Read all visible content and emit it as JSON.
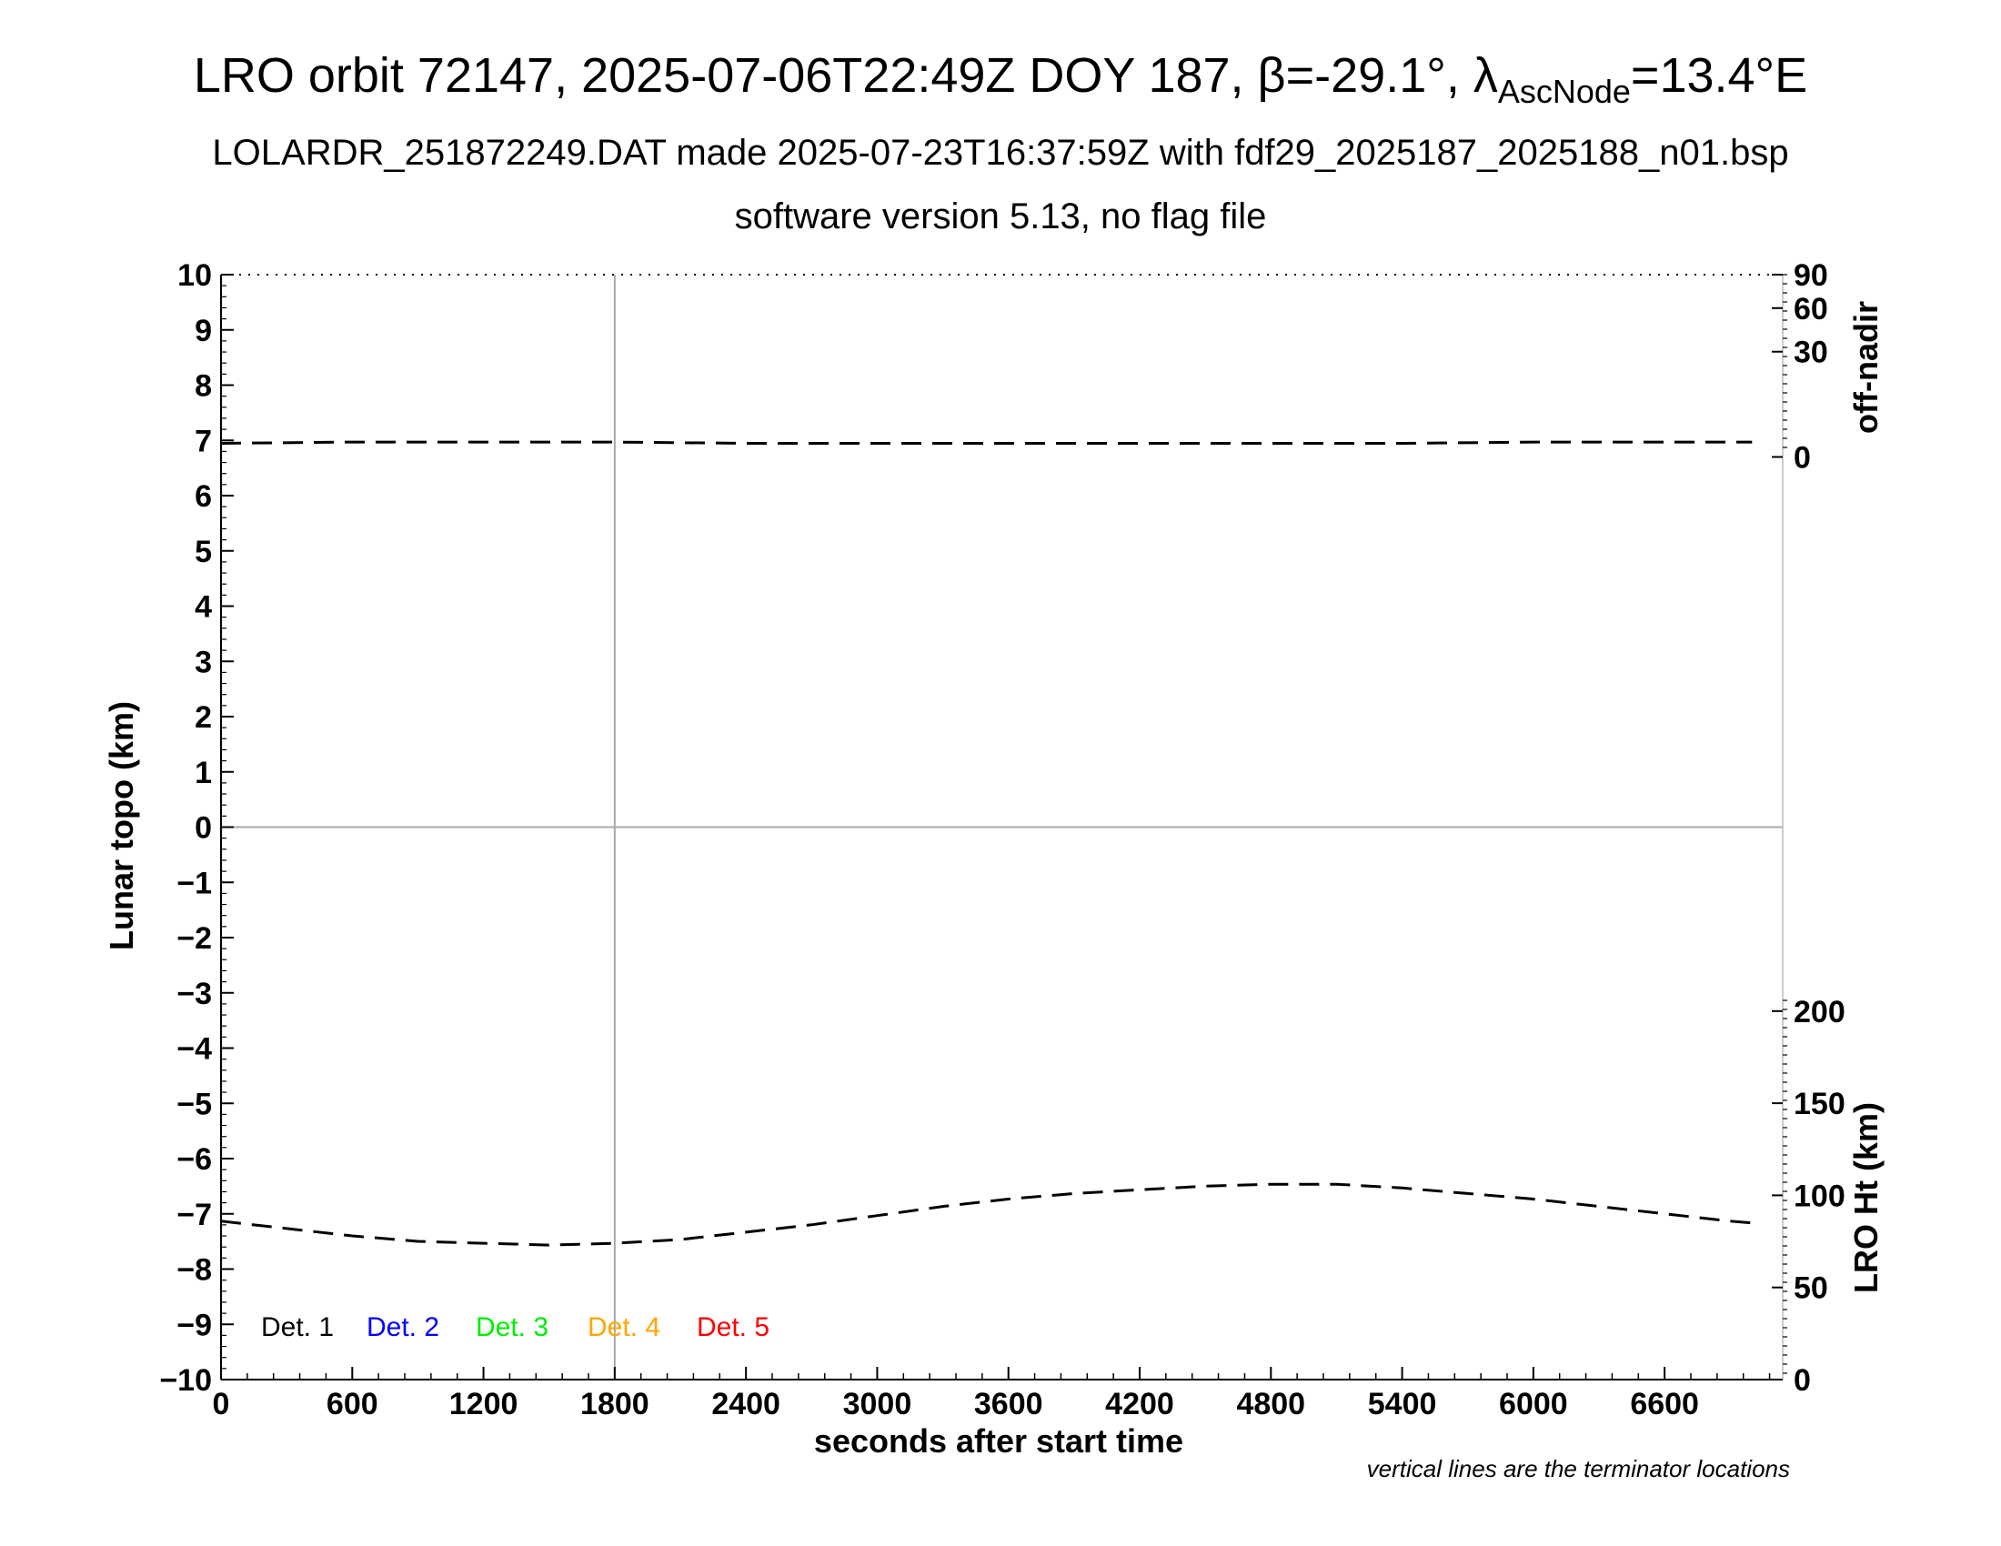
{
  "title": {
    "main": "LRO orbit 72147, 2025-07-06T22:49Z DOY 187, β=-29.1°, λ",
    "main_sub": "AscNode",
    "main_tail": "=13.4°E",
    "line2": "LOLARDR_251872249.DAT made 2025-07-23T16:37:59Z with fdf29_2025187_2025188_n01.bsp",
    "line3": "software version 5.13, no flag file"
  },
  "footnote": "vertical lines are the terminator locations",
  "colors": {
    "det1": "#000000",
    "det2": "#0000ff",
    "det3": "#00ee00",
    "det4": "#ffa500",
    "det5": "#ff0000",
    "grid": "#aaaaaa"
  },
  "chart_data": {
    "type": "line",
    "xlabel": "seconds after start time",
    "ylabel": "Lunar topo (km)",
    "xlim": [
      0,
      7140
    ],
    "ylim": [
      -10,
      10
    ],
    "x_ticks": [
      0,
      600,
      1200,
      1800,
      2400,
      3000,
      3600,
      4200,
      4800,
      5400,
      6000,
      6600
    ],
    "y_ticks": [
      10,
      9,
      8,
      7,
      6,
      5,
      4,
      3,
      2,
      1,
      0,
      -1,
      -2,
      -3,
      -4,
      -5,
      -6,
      -7,
      -8,
      -9,
      -10
    ],
    "y_tick_labels": [
      "10",
      "9",
      "8",
      "7",
      "6",
      "5",
      "4",
      "3",
      "2",
      "1",
      "0",
      "−1",
      "−2",
      "−3",
      "−4",
      "−5",
      "−6",
      "−7",
      "−8",
      "−9",
      "−10"
    ],
    "right_axis_top": {
      "label": "off-nadir",
      "ticks": [
        "90",
        "60",
        "30",
        "0"
      ]
    },
    "right_axis_bottom": {
      "label": "LRO Ht (km)",
      "ylim": [
        0,
        200
      ],
      "ticks": [
        "200",
        "150",
        "100",
        "50",
        "0"
      ]
    },
    "terminator_lines_x": [
      1800
    ],
    "legend": [
      "Det. 1",
      "Det. 2",
      "Det. 3",
      "Det. 4",
      "Det. 5"
    ],
    "series": [
      {
        "axis": "off-nadir",
        "style": "dashed",
        "x": [
          0,
          600,
          1200,
          1800,
          2400,
          3000,
          3600,
          4200,
          4800,
          5400,
          6000,
          6600,
          7000
        ],
        "values": [
          0.5,
          0.6,
          0.6,
          0.6,
          0.5,
          0.5,
          0.5,
          0.5,
          0.5,
          0.5,
          0.6,
          0.6,
          0.6
        ]
      },
      {
        "axis": "LRO Ht (km)",
        "style": "dashed",
        "x": [
          0,
          300,
          600,
          900,
          1200,
          1500,
          1800,
          2100,
          2400,
          2700,
          3000,
          3300,
          3600,
          3900,
          4200,
          4500,
          4800,
          5100,
          5400,
          5700,
          6000,
          6300,
          6600,
          6900,
          7000
        ],
        "values": [
          86,
          82,
          78,
          75,
          74,
          73,
          74,
          76,
          80,
          84,
          89,
          94,
          98,
          101,
          103,
          105,
          106,
          106,
          104,
          101,
          98,
          94,
          90,
          86,
          85
        ]
      }
    ]
  }
}
